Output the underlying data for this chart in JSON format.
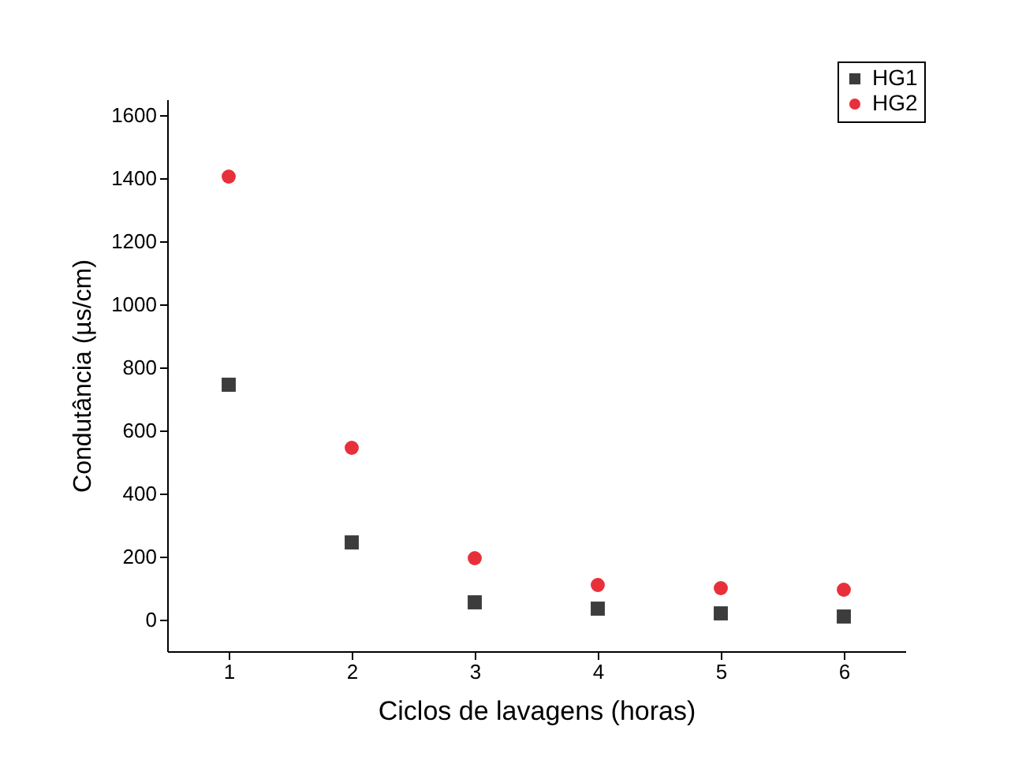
{
  "chart_data": {
    "type": "scatter",
    "xlabel": "Ciclos de lavagens (horas)",
    "ylabel": "Condutância (µs/cm)",
    "x": [
      1,
      2,
      3,
      4,
      5,
      6
    ],
    "series": [
      {
        "name": "HG1",
        "color": "#3c3c3c",
        "marker": "square",
        "values": [
          745,
          245,
          55,
          35,
          20,
          10
        ]
      },
      {
        "name": "HG2",
        "color": "#e8303a",
        "marker": "circle",
        "values": [
          1405,
          545,
          195,
          110,
          100,
          95
        ]
      }
    ],
    "xlim": [
      0.5,
      6.5
    ],
    "xticks": [
      1,
      2,
      3,
      4,
      5,
      6
    ],
    "ylim": [
      -100,
      1650
    ],
    "yticks": [
      0,
      200,
      400,
      600,
      800,
      1000,
      1200,
      1400,
      1600
    ],
    "grid": false,
    "legend": "top right"
  }
}
